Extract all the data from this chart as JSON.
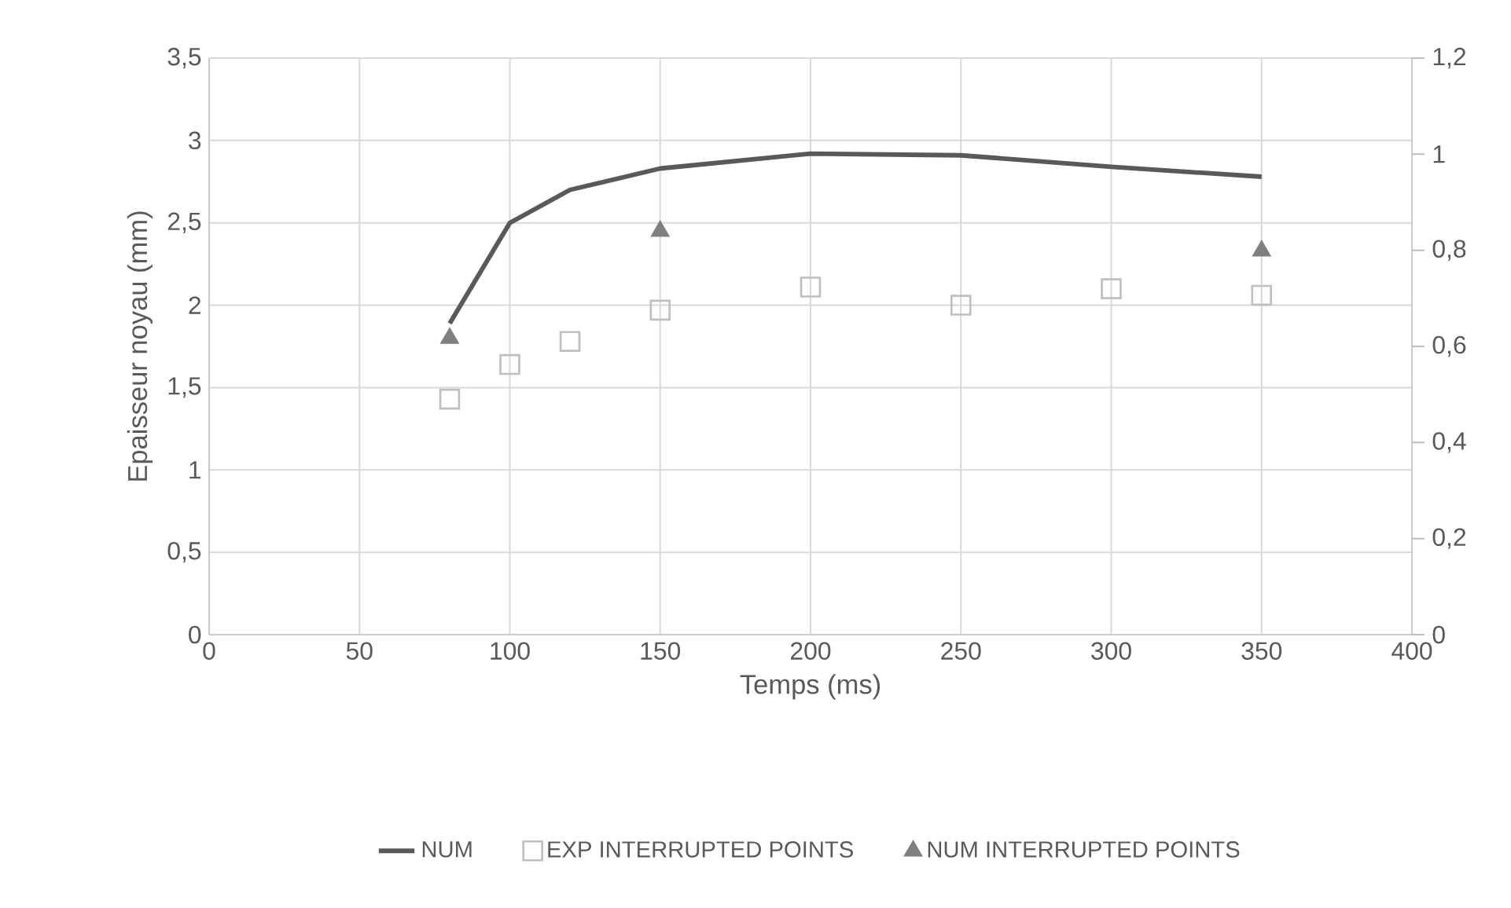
{
  "chart_data": {
    "type": "line",
    "xlabel": "Temps (ms)",
    "ylabel": "Epaisseur noyau (mm)",
    "xlim": [
      0,
      400
    ],
    "xticks": [
      0,
      50,
      100,
      150,
      200,
      250,
      300,
      350,
      400
    ],
    "ylim": [
      0,
      3.5
    ],
    "yticks": [
      0,
      {
        "value": 0.5,
        "label": "0,5"
      },
      1,
      {
        "value": 1.5,
        "label": "1,5"
      },
      2,
      {
        "value": 2.5,
        "label": "2,5"
      },
      3,
      {
        "value": 3.5,
        "label": "3,5"
      }
    ],
    "y2lim": [
      0,
      1.2
    ],
    "y2ticks": [
      0,
      {
        "value": 0.2,
        "label": "0,2"
      },
      {
        "value": 0.4,
        "label": "0,4"
      },
      {
        "value": 0.6,
        "label": "0,6"
      },
      {
        "value": 0.8,
        "label": "0,8"
      },
      1,
      {
        "value": 1.2,
        "label": "1,2"
      }
    ],
    "grid": true,
    "legend": "bottom",
    "series": [
      {
        "name": "NUM",
        "type": "line",
        "color": "#595959",
        "marker": "none",
        "x": [
          80,
          100,
          120,
          150,
          200,
          250,
          300,
          350
        ],
        "values": [
          1.89,
          2.5,
          2.7,
          2.83,
          2.92,
          2.91,
          2.84,
          2.78
        ]
      },
      {
        "name": "EXP INTERRUPTED POINTS",
        "type": "scatter",
        "color": "#bfbfbf",
        "marker": "square",
        "x": [
          80,
          100,
          120,
          150,
          200,
          250,
          300,
          350
        ],
        "values": [
          1.43,
          1.64,
          1.78,
          1.97,
          2.11,
          2.0,
          2.1,
          2.06
        ]
      },
      {
        "name": "NUM INTERRUPTED POINTS",
        "type": "scatter",
        "color": "#7f7f7f",
        "marker": "triangle",
        "x": [
          80,
          150,
          350
        ],
        "values": [
          1.8,
          2.45,
          2.33
        ]
      }
    ]
  }
}
